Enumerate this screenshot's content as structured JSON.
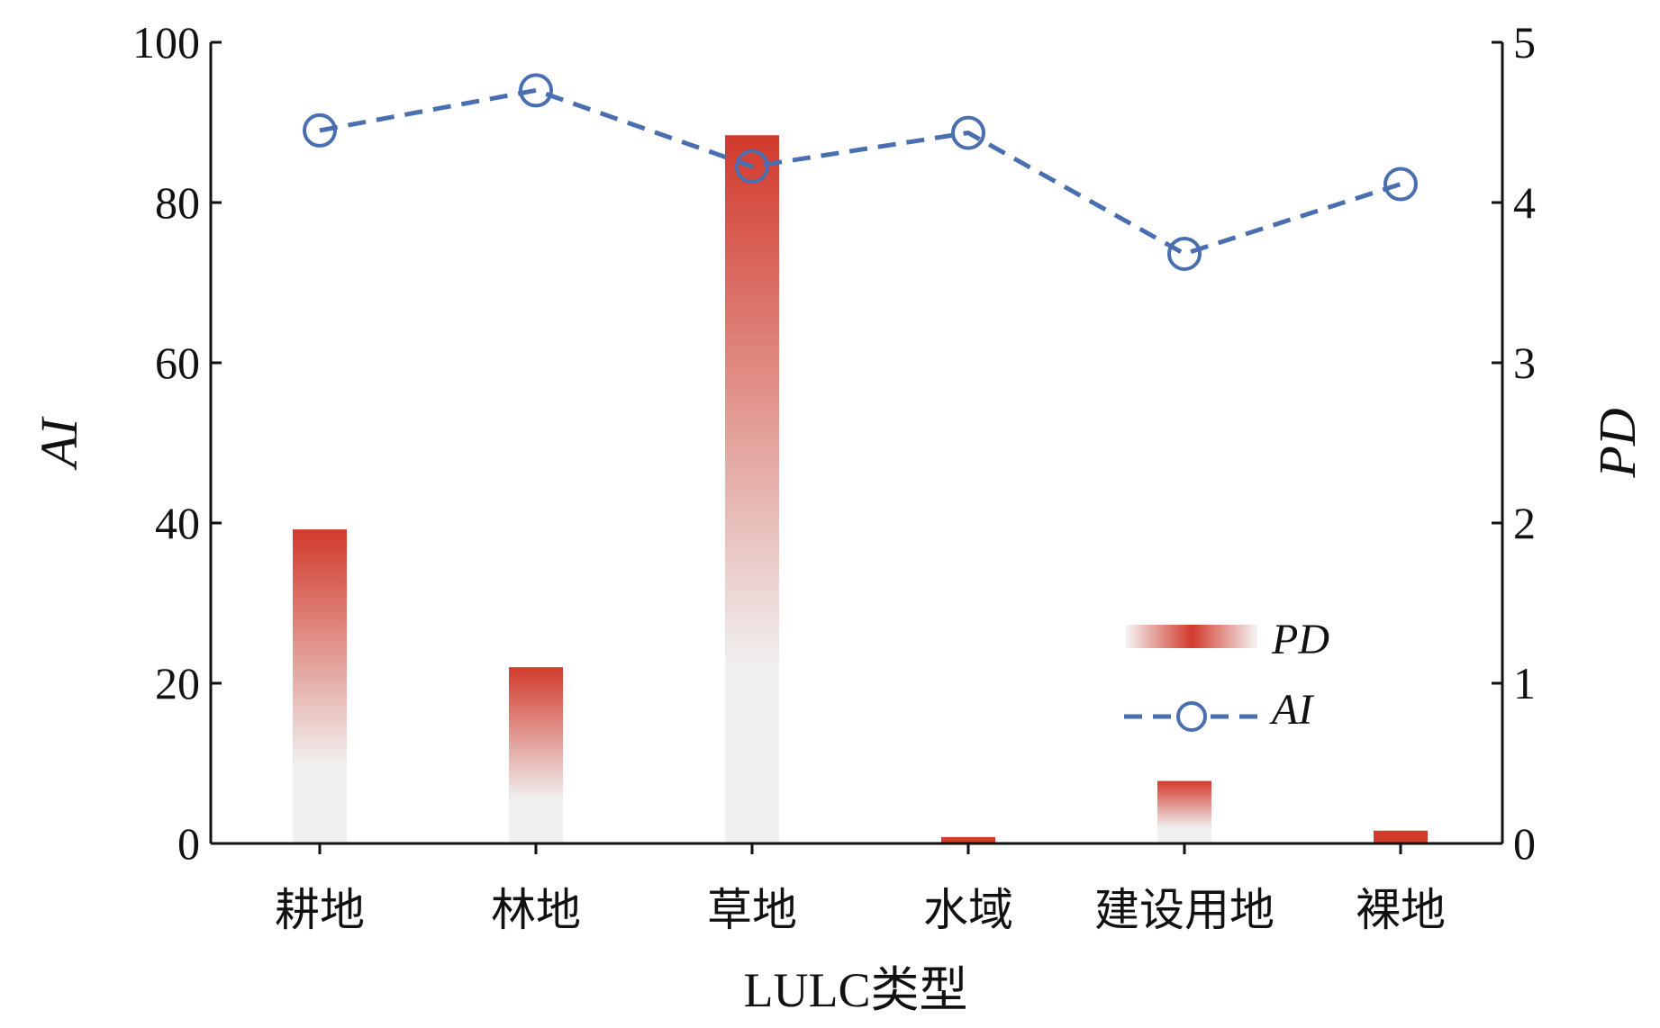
{
  "chart_data": {
    "type": "bar",
    "categories": [
      "耕地",
      "林地",
      "草地",
      "水域",
      "建设用地",
      "裸地"
    ],
    "xlabel": "LULC类型",
    "ylabel_left": "AI",
    "ylabel_right": "PD",
    "ylim_left": [
      0,
      100
    ],
    "ylim_right": [
      0,
      5
    ],
    "yticks_left": [
      "0",
      "20",
      "40",
      "60",
      "80",
      "100"
    ],
    "yticks_right": [
      "0",
      "1",
      "2",
      "3",
      "4",
      "5"
    ],
    "series": [
      {
        "name": "PD",
        "kind": "bar",
        "axis": "right",
        "values": [
          1.96,
          1.1,
          4.42,
          0.04,
          0.39,
          0.08
        ]
      },
      {
        "name": "AI",
        "kind": "line",
        "axis": "left",
        "values": [
          89.0,
          94.0,
          84.5,
          88.7,
          73.6,
          82.3
        ]
      }
    ],
    "legend": {
      "position": "lower-right",
      "entries": [
        "PD",
        "AI"
      ]
    },
    "colors": {
      "bar_top": "#d23a2c",
      "bar_bottom": "#f0f0f0",
      "line": "#4a6fb0"
    },
    "grid": false
  }
}
